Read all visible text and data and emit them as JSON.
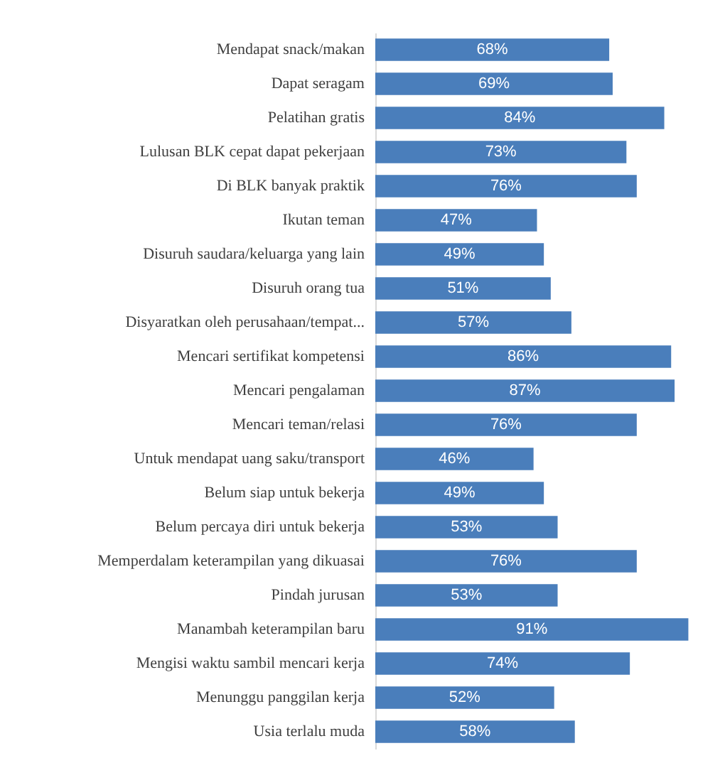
{
  "chart_data": {
    "type": "bar",
    "orientation": "horizontal",
    "categories": [
      "Mendapat snack/makan",
      "Dapat seragam",
      "Pelatihan gratis",
      "Lulusan BLK cepat dapat pekerjaan",
      "Di BLK banyak praktik",
      "Ikutan teman",
      "Disuruh saudara/keluarga yang lain",
      "Disuruh orang tua",
      "Disyaratkan oleh perusahaan/tempat...",
      "Mencari sertifikat kompetensi",
      "Mencari pengalaman",
      "Mencari teman/relasi",
      "Untuk mendapat uang saku/transport",
      "Belum siap untuk bekerja",
      "Belum percaya diri untuk bekerja",
      "Memperdalam keterampilan yang dikuasai",
      "Pindah jurusan",
      "Manambah keterampilan baru",
      "Mengisi waktu sambil mencari kerja",
      "Menunggu panggilan kerja",
      "Usia terlalu muda"
    ],
    "series": [
      {
        "color": "#4a7ebb",
        "values": [
          68,
          69,
          84,
          73,
          76,
          47,
          49,
          51,
          57,
          86,
          87,
          76,
          46,
          49,
          53,
          76,
          53,
          91,
          74,
          52,
          58
        ],
        "value_labels": [
          "68%",
          "69%",
          "84%",
          "73%",
          "76%",
          "47%",
          "49%",
          "51%",
          "57%",
          "86%",
          "87%",
          "76%",
          "46%",
          "49%",
          "53%",
          "76%",
          "53%",
          "91%",
          "74%",
          "52%",
          "58%"
        ]
      }
    ],
    "tick_labels": "y"
  }
}
